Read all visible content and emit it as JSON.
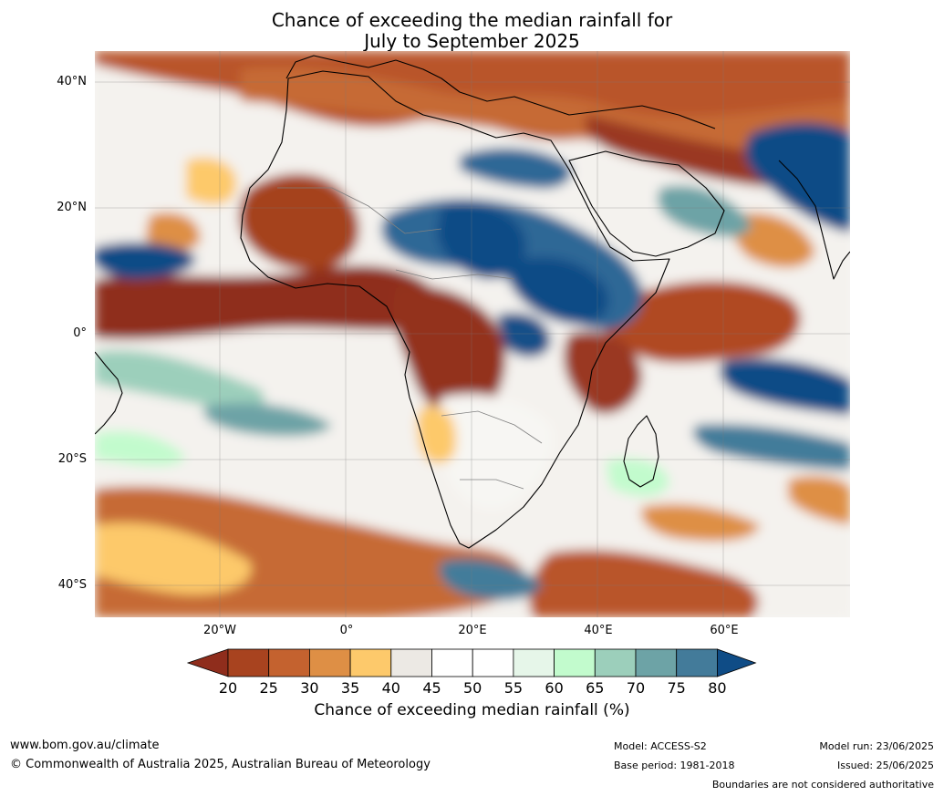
{
  "title_line1": "Chance of exceeding the median rainfall for",
  "title_line2": "July to September 2025",
  "lat_ticks": [
    "40°N",
    "20°N",
    "0°",
    "20°S",
    "40°S"
  ],
  "lon_ticks": [
    "20°W",
    "0°",
    "20°E",
    "40°E",
    "60°E"
  ],
  "colorbar": {
    "labels": [
      "20",
      "25",
      "30",
      "35",
      "40",
      "45",
      "50",
      "55",
      "60",
      "65",
      "70",
      "75",
      "80"
    ],
    "colors": [
      "#8f2d1c",
      "#a8431f",
      "#c4622f",
      "#de8f45",
      "#fdc96b",
      "#ece9e4",
      "#ffffff",
      "#ffffff",
      "#e6f6e9",
      "#c2fbcd",
      "#9ccfbb",
      "#6da3a6",
      "#437b9a",
      "#0f4c86"
    ],
    "title": "Chance of exceeding median rainfall (%)"
  },
  "footer": {
    "website": "www.bom.gov.au/climate",
    "copyright": "© Commonwealth of Australia 2025, Australian Bureau of Meteorology",
    "model": "Model: ACCESS-S2",
    "base_period": "Base period: 1981-2018",
    "model_run": "Model run: 23/06/2025",
    "issued": "Issued: 25/06/2025",
    "disclaimer": "Boundaries are not considered authoritative"
  }
}
